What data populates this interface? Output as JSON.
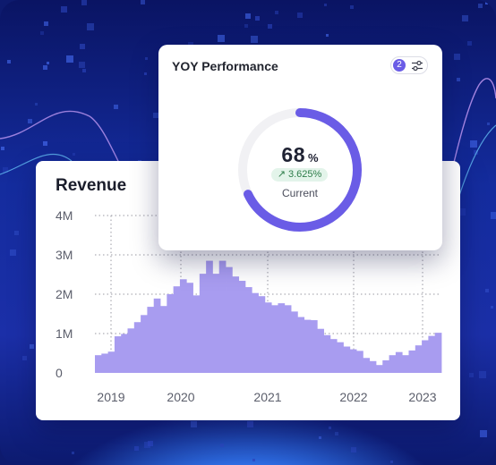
{
  "revenue_card": {
    "title": "Revenue"
  },
  "yoy_card": {
    "title": "YOY Performance",
    "filter_count": "2",
    "percent_value": "68",
    "percent_unit": "%",
    "change": "3.625%",
    "change_icon": "arrow-up-right-icon",
    "status_label": "Current",
    "colors": {
      "accent": "#6a5ce6",
      "track": "#f1f1f4",
      "positive_bg": "#e3f4ea",
      "positive_text": "#2e7d4a"
    }
  },
  "chart_data": {
    "type": "bar",
    "title": "Revenue",
    "xlabel": "",
    "ylabel": "",
    "y_ticks": [
      "0",
      "1M",
      "2M",
      "3M",
      "4M"
    ],
    "x_ticks": [
      "2019",
      "2020",
      "2021",
      "2022",
      "2023"
    ],
    "ylim": [
      0,
      4000000
    ],
    "grid": true,
    "bar_color": "#a89cf0",
    "values": [
      450000,
      490000,
      540000,
      930000,
      990000,
      1130000,
      1290000,
      1470000,
      1680000,
      1890000,
      1700000,
      2000000,
      2200000,
      2380000,
      2290000,
      1970000,
      2520000,
      2850000,
      2520000,
      2850000,
      2690000,
      2450000,
      2340000,
      2180000,
      2030000,
      1950000,
      1790000,
      1720000,
      1770000,
      1720000,
      1560000,
      1420000,
      1350000,
      1340000,
      1120000,
      960000,
      860000,
      780000,
      670000,
      600000,
      560000,
      380000,
      300000,
      200000,
      320000,
      450000,
      530000,
      450000,
      570000,
      700000,
      830000,
      940000,
      1020000
    ]
  }
}
